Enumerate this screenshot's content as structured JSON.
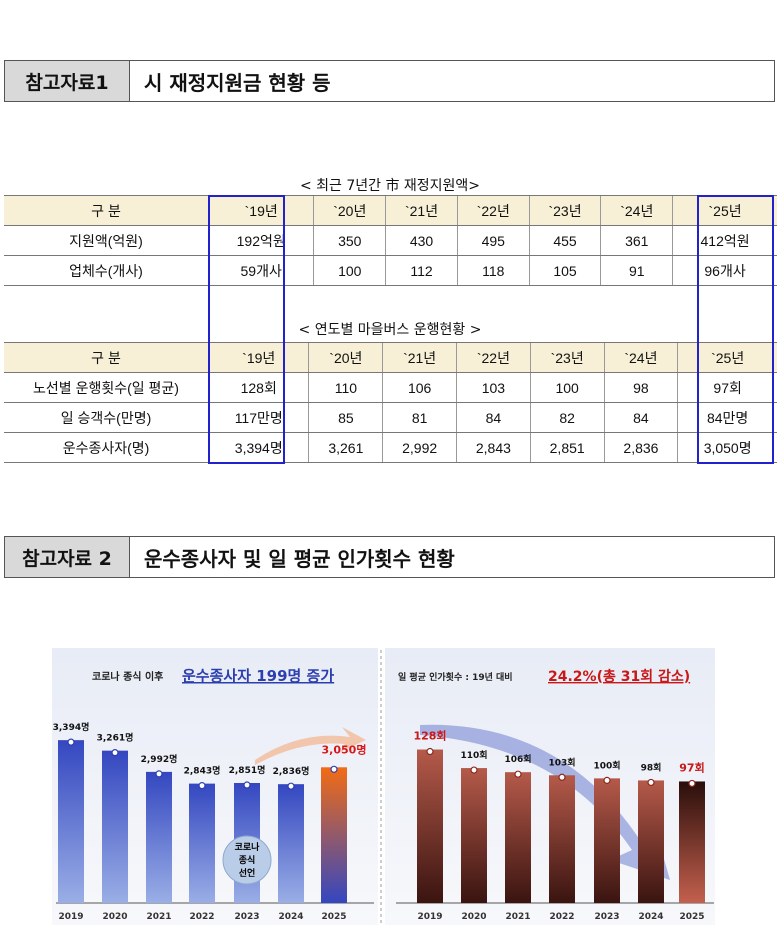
{
  "section1": {
    "label": "참고자료1",
    "title": "시 재정지원금 현황 등"
  },
  "table1": {
    "caption": "< 최근 7년간 市 재정지원액>",
    "header": [
      "구  분",
      "`19년",
      "`20년",
      "`21년",
      "`22년",
      "`23년",
      "`24년",
      "`25년"
    ],
    "rows": [
      [
        "지원액(억원)",
        "192억원",
        "350",
        "430",
        "495",
        "455",
        "361",
        "412억원"
      ],
      [
        "업체수(개사)",
        "59개사",
        "100",
        "112",
        "118",
        "105",
        "91",
        "96개사"
      ]
    ]
  },
  "table2": {
    "caption": "< 연도별 마을버스 운행현황 >",
    "header": [
      "구  분",
      "`19년",
      "`20년",
      "`21년",
      "`22년",
      "`23년",
      "`24년",
      "`25년"
    ],
    "rows": [
      [
        "노선별 운행횟수(일 평균)",
        "128회",
        "110",
        "106",
        "103",
        "100",
        "98",
        "97회"
      ],
      [
        "일 승객수(만명)",
        "117만명",
        "85",
        "81",
        "84",
        "82",
        "84",
        "84만명"
      ],
      [
        "운수종사자(명)",
        "3,394명",
        "3,261",
        "2,992",
        "2,843",
        "2,851",
        "2,836",
        "3,050명"
      ]
    ]
  },
  "section2": {
    "label": "참고자료 2",
    "title": "운수종사자 및 일 평균 인가횟수 현황"
  },
  "chart_data": [
    {
      "type": "bar",
      "title_prefix": "코로나 종식 이후",
      "title_highlight": "운수종사자 199명 증가",
      "badge": "코로나 종식 선언",
      "categories": [
        "2019",
        "2020",
        "2021",
        "2022",
        "2023",
        "2024",
        "2025"
      ],
      "values": [
        3394,
        3261,
        2992,
        2843,
        2851,
        2836,
        3050
      ],
      "labels": [
        "3,394명",
        "3,261명",
        "2,992명",
        "2,843명",
        "2,851명",
        "2,836명",
        "3,050명"
      ],
      "ylim": [
        1330,
        3600
      ],
      "colors": {
        "bar": "#3a4fc4",
        "highlight": "#f06a1a"
      }
    },
    {
      "type": "bar",
      "title_prefix": "일 평균 인가횟수 : 19년 대비",
      "title_highlight": "24.2%(총 31회 감소)",
      "categories": [
        "2019",
        "2020",
        "2021",
        "2022",
        "2023",
        "2024",
        "2025"
      ],
      "values": [
        128,
        110,
        106,
        103,
        100,
        98,
        97
      ],
      "labels": [
        "128회",
        "110회",
        "106회",
        "103회",
        "100회",
        "98회",
        "97회"
      ],
      "ylim": [
        -21,
        140
      ],
      "colors": {
        "bar": "#b0584a",
        "highlight": "#d01c1c"
      }
    }
  ]
}
